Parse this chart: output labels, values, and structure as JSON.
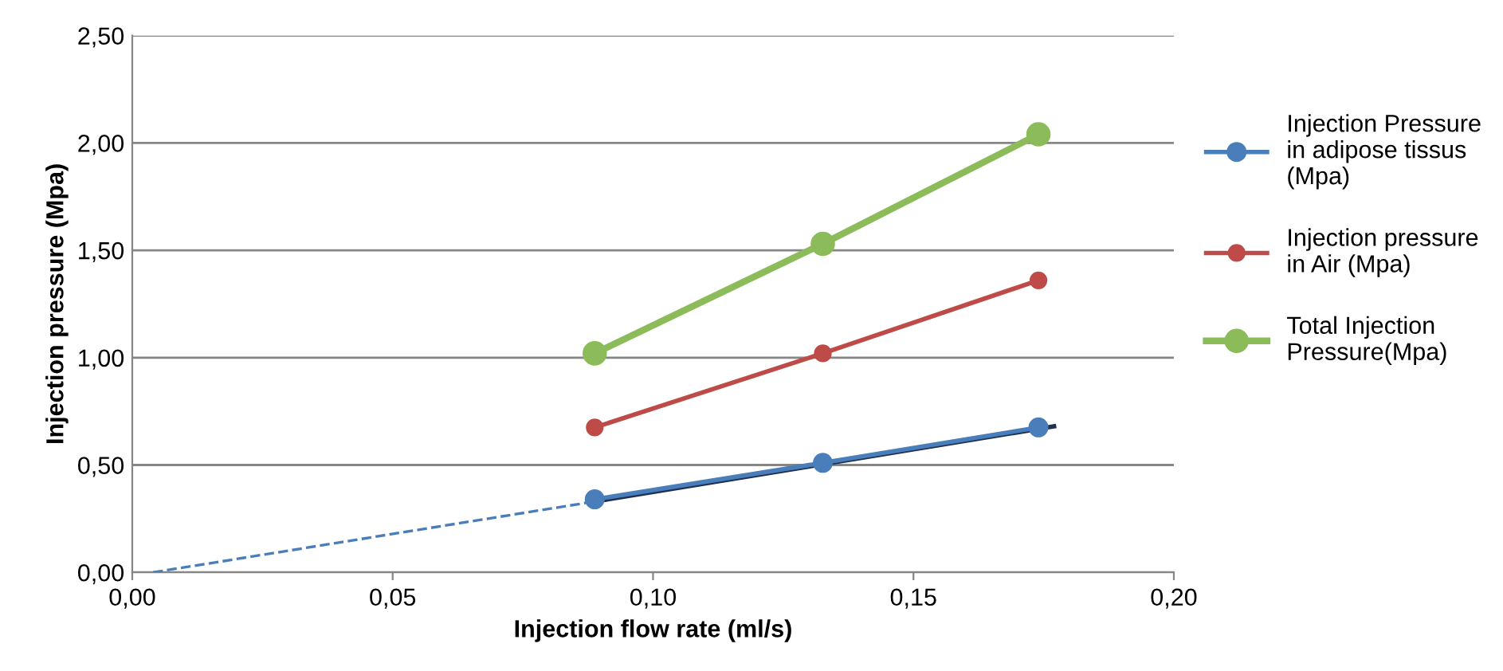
{
  "chart_data": {
    "type": "line",
    "xlabel": "Injection flow rate (ml/s)",
    "ylabel": "Injection pressure (Mpa)",
    "xlim": [
      0,
      0.2
    ],
    "ylim": [
      0,
      2.5
    ],
    "xticks": [
      {
        "value": 0,
        "label": "0,00"
      },
      {
        "value": 0.05,
        "label": "0,05"
      },
      {
        "value": 0.1,
        "label": "0,10"
      },
      {
        "value": 0.15,
        "label": "0,15"
      },
      {
        "value": 0.2,
        "label": "0,20"
      }
    ],
    "yticks": [
      {
        "value": 0,
        "label": "0,00"
      },
      {
        "value": 0.5,
        "label": "0,50"
      },
      {
        "value": 1,
        "label": "1,00"
      },
      {
        "value": 1.5,
        "label": "1,50"
      },
      {
        "value": 2,
        "label": "2,00"
      },
      {
        "value": 2.5,
        "label": "2,50"
      }
    ],
    "grid": "y",
    "legend": "right",
    "marker": "circle",
    "series": [
      {
        "name": "Injection Pressure\nin adipose tissus\n(Mpa)",
        "color": "#4a7ebb",
        "x": [
          0.0888,
          0.1326,
          0.174
        ],
        "values": [
          0.34,
          0.51,
          0.675
        ]
      },
      {
        "name": "Injection pressure\nin Air (Mpa)",
        "color": "#be4b48",
        "x": [
          0.0888,
          0.1326,
          0.174
        ],
        "values": [
          0.675,
          1.02,
          1.36
        ]
      },
      {
        "name": "Total Injection\nPressure(Mpa)",
        "color": "#8cbb5a",
        "x": [
          0.0888,
          0.1326,
          0.174
        ],
        "values": [
          1.02,
          1.53,
          2.04
        ]
      },
      {
        "type": "line",
        "color": "#4a7ebb",
        "line_style": "dashed",
        "marker": "none",
        "x": [
          0.004,
          0.0888
        ],
        "values": [
          0,
          0.33
        ]
      },
      {
        "type": "line",
        "color": "#1f3050",
        "line_style": "solid",
        "marker": "none",
        "x": [
          0.0888,
          0.177
        ],
        "values": [
          0.33,
          0.68
        ]
      }
    ]
  }
}
